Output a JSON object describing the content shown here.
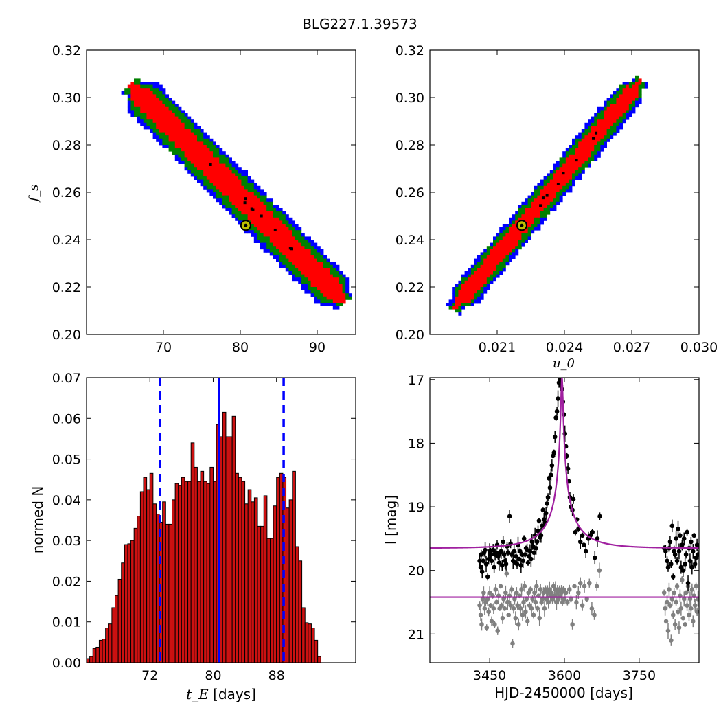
{
  "title": "BLG227.1.39573",
  "colors": {
    "outer": "#0000ff",
    "mid": "#008000",
    "inner": "#ff0000",
    "best_fill": "#bfbf00",
    "hist_fill": "#cc1111",
    "model": "#a020a0",
    "median": "#0000ff",
    "primary": "#000000",
    "secondary": "#808080"
  },
  "chart_data": [
    {
      "id": "tE-fs",
      "type": "heatmap",
      "xlabel": "",
      "ylabel": "f_s",
      "xlim": [
        60,
        95
      ],
      "ylim": [
        0.2,
        0.32
      ],
      "x_ticks": [
        70,
        80,
        90
      ],
      "x_tick_labels": [
        "70",
        "80",
        "90"
      ],
      "y_ticks": [
        0.2,
        0.22,
        0.24,
        0.26,
        0.28,
        0.3,
        0.32
      ],
      "y_tick_labels": [
        "0.20",
        "0.22",
        "0.24",
        "0.26",
        "0.28",
        "0.30",
        "0.32"
      ],
      "ridge": [
        [
          65.8,
          0.305
        ],
        [
          93.5,
          0.214
        ]
      ],
      "band_halfwidth": {
        "inner": 0.0045,
        "mid": 0.007,
        "outer": 0.0085
      },
      "best_fit": {
        "x": 80.7,
        "y": 0.246
      },
      "grid": false
    },
    {
      "id": "u0-fs",
      "type": "heatmap",
      "xlabel": "u_0",
      "ylabel": "",
      "xlim": [
        0.018,
        0.03
      ],
      "ylim": [
        0.2,
        0.32
      ],
      "x_ticks": [
        0.021,
        0.024,
        0.027,
        0.03
      ],
      "x_tick_labels": [
        "0.021",
        "0.024",
        "0.027",
        "0.030"
      ],
      "y_ticks": [
        0.2,
        0.22,
        0.24,
        0.26,
        0.28,
        0.3,
        0.32
      ],
      "y_tick_labels": [
        "0.20",
        "0.22",
        "0.24",
        "0.26",
        "0.28",
        "0.30",
        "0.32"
      ],
      "ridge": [
        [
          0.0191,
          0.211
        ],
        [
          0.0274,
          0.307
        ]
      ],
      "band_halfwidth": {
        "inner": 0.003,
        "mid": 0.0048,
        "outer": 0.006
      },
      "best_fit": {
        "x": 0.0221,
        "y": 0.246
      },
      "grid": false
    },
    {
      "id": "tE-hist",
      "type": "bar",
      "xlabel": "t_E",
      "xlabel_suffix": " [days]",
      "ylabel": "normed N",
      "xlim": [
        64,
        98
      ],
      "ylim": [
        0,
        0.07
      ],
      "x_ticks": [
        72,
        80,
        88
      ],
      "x_tick_labels": [
        "72",
        "80",
        "88"
      ],
      "y_ticks": [
        0,
        0.01,
        0.02,
        0.03,
        0.04,
        0.05,
        0.06,
        0.07
      ],
      "y_tick_labels": [
        "0.00",
        "0.01",
        "0.02",
        "0.03",
        "0.04",
        "0.05",
        "0.06",
        "0.07"
      ],
      "bin_start": 64,
      "bin_width": 0.4,
      "values": [
        0.001,
        0.0015,
        0.0035,
        0.0038,
        0.0055,
        0.0058,
        0.0085,
        0.0095,
        0.0135,
        0.0165,
        0.0205,
        0.0245,
        0.029,
        0.0292,
        0.03,
        0.033,
        0.036,
        0.042,
        0.0455,
        0.0425,
        0.0465,
        0.039,
        0.0365,
        0.0345,
        0.0395,
        0.034,
        0.034,
        0.04,
        0.044,
        0.0435,
        0.0455,
        0.0445,
        0.0445,
        0.054,
        0.048,
        0.0445,
        0.047,
        0.0445,
        0.044,
        0.048,
        0.0445,
        0.0585,
        0.0555,
        0.0615,
        0.0555,
        0.0555,
        0.0605,
        0.0465,
        0.0455,
        0.0445,
        0.039,
        0.0425,
        0.0395,
        0.0405,
        0.0335,
        0.0335,
        0.041,
        0.0305,
        0.0305,
        0.0385,
        0.0455,
        0.0465,
        0.0455,
        0.038,
        0.04,
        0.047,
        0.0285,
        0.025,
        0.0135,
        0.0098,
        0.0095,
        0.0085,
        0.0055,
        0.0015
      ],
      "median": 80.7,
      "dashed_lines": [
        73.3,
        88.9
      ],
      "grid": false
    },
    {
      "id": "lightcurve",
      "type": "scatter",
      "xlabel": "HJD-2450000 [days]",
      "ylabel": "I [mag]",
      "xlim": [
        3330,
        3870
      ],
      "ylim": [
        21.45,
        16.97
      ],
      "x_ticks": [
        3450,
        3600,
        3750
      ],
      "x_tick_labels": [
        "3450",
        "3600",
        "3750"
      ],
      "y_ticks": [
        17,
        18,
        19,
        20,
        21
      ],
      "y_tick_labels": [
        "17",
        "18",
        "19",
        "20",
        "21"
      ],
      "model": {
        "t0": 3595,
        "tE": 80.7,
        "u0": 0.0221,
        "fs": 0.246,
        "base_mag": 19.65,
        "x_range": [
          3330,
          3870
        ]
      },
      "baseline2_mag": 20.42,
      "primary_points": [
        [
          3430,
          19.85
        ],
        [
          3432,
          19.95
        ],
        [
          3433,
          19.75
        ],
        [
          3435,
          20.02
        ],
        [
          3437,
          19.85
        ],
        [
          3439,
          19.72
        ],
        [
          3441,
          19.68
        ],
        [
          3443,
          19.9
        ],
        [
          3446,
          20.1
        ],
        [
          3448,
          19.82
        ],
        [
          3450,
          19.7
        ],
        [
          3452,
          19.75
        ],
        [
          3454,
          19.85
        ],
        [
          3457,
          19.68
        ],
        [
          3459,
          19.95
        ],
        [
          3461,
          19.75
        ],
        [
          3463,
          19.72
        ],
        [
          3465,
          19.6
        ],
        [
          3467,
          19.78
        ],
        [
          3469,
          19.88
        ],
        [
          3471,
          19.72
        ],
        [
          3473,
          19.7
        ],
        [
          3475,
          19.92
        ],
        [
          3477,
          19.55
        ],
        [
          3479,
          19.75
        ],
        [
          3481,
          19.85
        ],
        [
          3483,
          19.9
        ],
        [
          3485,
          19.62
        ],
        [
          3487,
          19.72
        ],
        [
          3490,
          19.15
        ],
        [
          3492,
          19.58
        ],
        [
          3494,
          19.75
        ],
        [
          3497,
          19.85
        ],
        [
          3499,
          19.7
        ],
        [
          3501,
          19.88
        ],
        [
          3503,
          19.78
        ],
        [
          3505,
          19.9
        ],
        [
          3507,
          19.6
        ],
        [
          3509,
          19.82
        ],
        [
          3511,
          19.7
        ],
        [
          3513,
          19.92
        ],
        [
          3515,
          19.75
        ],
        [
          3517,
          19.85
        ],
        [
          3519,
          19.5
        ],
        [
          3521,
          19.75
        ],
        [
          3523,
          19.65
        ],
        [
          3525,
          19.68
        ],
        [
          3527,
          19.88
        ],
        [
          3529,
          19.78
        ],
        [
          3531,
          19.7
        ],
        [
          3533,
          19.82
        ],
        [
          3535,
          19.55
        ],
        [
          3537,
          19.62
        ],
        [
          3539,
          19.72
        ],
        [
          3541,
          19.45
        ],
        [
          3543,
          19.65
        ],
        [
          3545,
          19.55
        ],
        [
          3547,
          19.38
        ],
        [
          3549,
          19.22
        ],
        [
          3551,
          19.48
        ],
        [
          3553,
          19.45
        ],
        [
          3555,
          19.3
        ],
        [
          3557,
          19.05
        ],
        [
          3559,
          19.2
        ],
        [
          3561,
          19.25
        ],
        [
          3563,
          19.1
        ],
        [
          3565,
          18.95
        ],
        [
          3567,
          18.85
        ],
        [
          3569,
          18.55
        ],
        [
          3571,
          18.7
        ],
        [
          3573,
          18.5
        ],
        [
          3575,
          18.35
        ],
        [
          3577,
          18.2
        ],
        [
          3579,
          18.15
        ],
        [
          3581,
          17.9
        ],
        [
          3583,
          17.6
        ],
        [
          3585,
          17.5
        ],
        [
          3587,
          17.3
        ],
        [
          3589,
          17.05
        ],
        [
          3591,
          17.0
        ],
        [
          3593,
          17.1
        ],
        [
          3595,
          17.15
        ],
        [
          3597,
          17.35
        ],
        [
          3599,
          17.55
        ],
        [
          3601,
          17.85
        ],
        [
          3603,
          18.05
        ],
        [
          3605,
          18.2
        ],
        [
          3607,
          18.4
        ],
        [
          3609,
          18.6
        ],
        [
          3611,
          18.85
        ],
        [
          3613,
          19.0
        ],
        [
          3616,
          19.05
        ],
        [
          3618,
          18.88
        ],
        [
          3622,
          19.4
        ],
        [
          3625,
          19.2
        ],
        [
          3628,
          19.35
        ],
        [
          3632,
          19.55
        ],
        [
          3636,
          19.45
        ],
        [
          3639,
          19.6
        ],
        [
          3643,
          19.7
        ],
        [
          3648,
          19.5
        ],
        [
          3652,
          19.45
        ],
        [
          3656,
          19.4
        ],
        [
          3661,
          19.8
        ],
        [
          3666,
          19.5
        ],
        [
          3671,
          19.15
        ],
        [
          3800,
          19.65
        ],
        [
          3803,
          19.7
        ],
        [
          3806,
          19.85
        ],
        [
          3808,
          19.95
        ],
        [
          3810,
          19.65
        ],
        [
          3812,
          19.55
        ],
        [
          3814,
          19.9
        ],
        [
          3816,
          19.3
        ],
        [
          3818,
          20.1
        ],
        [
          3820,
          19.7
        ],
        [
          3822,
          19.75
        ],
        [
          3824,
          19.5
        ],
        [
          3826,
          19.85
        ],
        [
          3828,
          19.35
        ],
        [
          3830,
          19.7
        ],
        [
          3832,
          19.45
        ],
        [
          3834,
          19.95
        ],
        [
          3836,
          19.6
        ],
        [
          3838,
          20.0
        ],
        [
          3840,
          19.5
        ],
        [
          3842,
          19.9
        ],
        [
          3844,
          19.75
        ],
        [
          3846,
          19.4
        ],
        [
          3848,
          20.2
        ],
        [
          3850,
          19.65
        ],
        [
          3852,
          19.85
        ],
        [
          3854,
          19.55
        ],
        [
          3856,
          19.95
        ],
        [
          3858,
          19.7
        ],
        [
          3860,
          19.45
        ],
        [
          3862,
          19.9
        ],
        [
          3864,
          19.8
        ],
        [
          3866,
          19.6
        ],
        [
          3868,
          19.75
        ]
      ],
      "secondary_points": [
        [
          3430,
          20.55
        ],
        [
          3432,
          20.7
        ],
        [
          3434,
          20.85
        ],
        [
          3436,
          20.45
        ],
        [
          3438,
          20.35
        ],
        [
          3440,
          20.6
        ],
        [
          3442,
          20.5
        ],
        [
          3444,
          20.9
        ],
        [
          3446,
          20.45
        ],
        [
          3448,
          20.65
        ],
        [
          3450,
          20.35
        ],
        [
          3452,
          20.55
        ],
        [
          3454,
          20.8
        ],
        [
          3456,
          20.4
        ],
        [
          3458,
          20.6
        ],
        [
          3460,
          20.85
        ],
        [
          3462,
          20.3
        ],
        [
          3464,
          20.5
        ],
        [
          3466,
          20.95
        ],
        [
          3468,
          20.4
        ],
        [
          3470,
          20.6
        ],
        [
          3472,
          20.25
        ],
        [
          3474,
          20.55
        ],
        [
          3476,
          20.75
        ],
        [
          3478,
          20.45
        ],
        [
          3480,
          20.6
        ],
        [
          3482,
          20.35
        ],
        [
          3484,
          20.05
        ],
        [
          3486,
          20.5
        ],
        [
          3488,
          20.7
        ],
        [
          3490,
          20.4
        ],
        [
          3492,
          20.55
        ],
        [
          3494,
          20.3
        ],
        [
          3496,
          21.15
        ],
        [
          3498,
          20.6
        ],
        [
          3500,
          20.45
        ],
        [
          3502,
          20.75
        ],
        [
          3504,
          20.35
        ],
        [
          3506,
          20.55
        ],
        [
          3508,
          20.85
        ],
        [
          3510,
          20.4
        ],
        [
          3512,
          20.6
        ],
        [
          3514,
          20.3
        ],
        [
          3516,
          20.7
        ],
        [
          3518,
          20.5
        ],
        [
          3520,
          20.25
        ],
        [
          3522,
          20.65
        ],
        [
          3524,
          20.45
        ],
        [
          3526,
          20.8
        ],
        [
          3528,
          20.35
        ],
        [
          3530,
          20.55
        ],
        [
          3532,
          20.3
        ],
        [
          3534,
          20.6
        ],
        [
          3536,
          20.45
        ],
        [
          3538,
          20.7
        ],
        [
          3540,
          20.35
        ],
        [
          3542,
          20.5
        ],
        [
          3544,
          20.25
        ],
        [
          3546,
          20.6
        ],
        [
          3548,
          20.4
        ],
        [
          3550,
          20.75
        ],
        [
          3552,
          20.3
        ],
        [
          3554,
          20.5
        ],
        [
          3556,
          20.45
        ],
        [
          3558,
          20.35
        ],
        [
          3560,
          20.6
        ],
        [
          3562,
          20.3
        ],
        [
          3564,
          20.45
        ],
        [
          3566,
          20.35
        ],
        [
          3568,
          20.5
        ],
        [
          3570,
          20.3
        ],
        [
          3572,
          20.4
        ],
        [
          3574,
          20.35
        ],
        [
          3576,
          20.45
        ],
        [
          3578,
          20.25
        ],
        [
          3580,
          20.4
        ],
        [
          3582,
          20.3
        ],
        [
          3584,
          20.5
        ],
        [
          3586,
          20.35
        ],
        [
          3588,
          20.45
        ],
        [
          3590,
          20.3
        ],
        [
          3592,
          20.4
        ],
        [
          3594,
          20.35
        ],
        [
          3596,
          20.5
        ],
        [
          3598,
          20.3
        ],
        [
          3600,
          20.45
        ],
        [
          3603,
          20.35
        ],
        [
          3606,
          20.5
        ],
        [
          3610,
          20.3
        ],
        [
          3613,
          20.45
        ],
        [
          3616,
          20.85
        ],
        [
          3620,
          20.25
        ],
        [
          3624,
          20.5
        ],
        [
          3628,
          20.35
        ],
        [
          3632,
          20.2
        ],
        [
          3636,
          20.55
        ],
        [
          3640,
          20.25
        ],
        [
          3645,
          20.45
        ],
        [
          3650,
          20.2
        ],
        [
          3655,
          20.6
        ],
        [
          3660,
          20.7
        ],
        [
          3665,
          20.25
        ],
        [
          3670,
          20.0
        ],
        [
          3800,
          20.35
        ],
        [
          3802,
          20.6
        ],
        [
          3804,
          20.8
        ],
        [
          3806,
          20.5
        ],
        [
          3808,
          20.95
        ],
        [
          3810,
          20.3
        ],
        [
          3812,
          20.55
        ],
        [
          3814,
          21.1
        ],
        [
          3816,
          20.45
        ],
        [
          3818,
          20.7
        ],
        [
          3820,
          20.35
        ],
        [
          3822,
          20.85
        ],
        [
          3824,
          20.5
        ],
        [
          3826,
          20.25
        ],
        [
          3828,
          20.65
        ],
        [
          3830,
          20.9
        ],
        [
          3832,
          20.4
        ],
        [
          3834,
          20.6
        ],
        [
          3836,
          20.15
        ],
        [
          3838,
          20.75
        ],
        [
          3840,
          20.45
        ],
        [
          3842,
          20.85
        ],
        [
          3844,
          20.35
        ],
        [
          3846,
          20.55
        ],
        [
          3848,
          20.25
        ],
        [
          3850,
          20.7
        ],
        [
          3852,
          20.45
        ],
        [
          3854,
          20.6
        ],
        [
          3856,
          20.3
        ],
        [
          3858,
          20.8
        ],
        [
          3860,
          20.4
        ],
        [
          3862,
          20.55
        ],
        [
          3864,
          20.25
        ],
        [
          3866,
          20.65
        ],
        [
          3868,
          20.45
        ]
      ],
      "grid": false
    }
  ]
}
